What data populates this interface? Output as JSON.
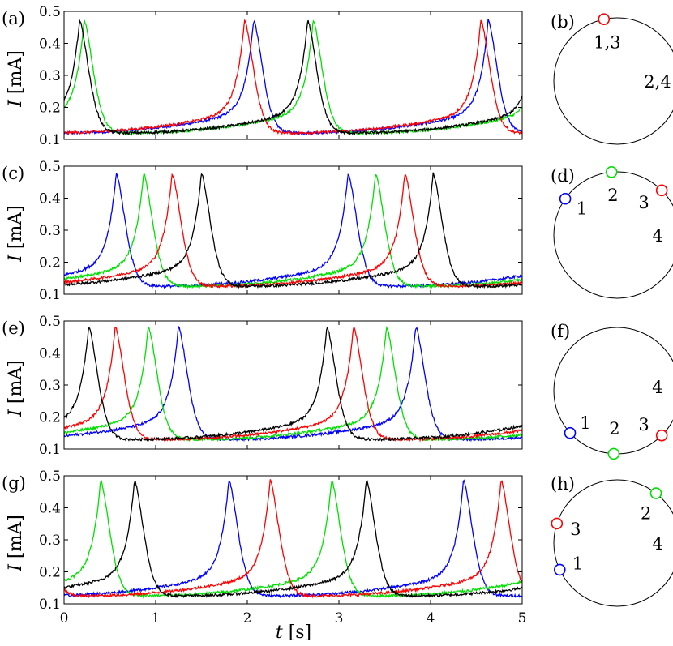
{
  "colors": {
    "1": "#0000ff",
    "2": "#00e000",
    "3": "#ff0000",
    "4": "#000000"
  },
  "xlabel_sym": "t",
  "xlabel_unit": "[s]",
  "ylabel_sym": "I",
  "ylabel_unit": "[mA]",
  "x_ticks": [
    "0",
    "1",
    "2",
    "3",
    "4",
    "5"
  ],
  "y_ticks": [
    "0.1",
    "0.2",
    "0.3",
    "0.4",
    "0.5"
  ],
  "panels": [
    {
      "label": "(a)",
      "circle_label": "(b)",
      "nodes": [
        {
          "id": "3",
          "angle": 102,
          "text": "1,3"
        },
        {
          "id": "4",
          "angle": 0,
          "text": "2,4"
        }
      ]
    },
    {
      "label": "(c)",
      "circle_label": "(d)",
      "nodes": [
        {
          "id": "1",
          "angle": 145,
          "text": "1"
        },
        {
          "id": "2",
          "angle": 95,
          "text": "2"
        },
        {
          "id": "3",
          "angle": 45,
          "text": "3"
        },
        {
          "id": "4",
          "angle": 0,
          "text": "4"
        }
      ]
    },
    {
      "label": "(e)",
      "circle_label": "(f)",
      "nodes": [
        {
          "id": "4",
          "angle": 5,
          "text": "4"
        },
        {
          "id": "3",
          "angle": -45,
          "text": "3"
        },
        {
          "id": "2",
          "angle": -93,
          "text": "2"
        },
        {
          "id": "1",
          "angle": -138,
          "text": "1"
        }
      ]
    },
    {
      "label": "(g)",
      "circle_label": "(h)",
      "nodes": [
        {
          "id": "2",
          "angle": 52,
          "text": "2"
        },
        {
          "id": "4",
          "angle": 0,
          "text": "4"
        },
        {
          "id": "3",
          "angle": 162,
          "text": "3"
        },
        {
          "id": "1",
          "angle": 205,
          "text": "1"
        }
      ]
    }
  ],
  "chart_data": [
    {
      "type": "line",
      "panel": "(a)",
      "xlim": [
        0,
        5
      ],
      "ylim": [
        0.1,
        0.5
      ],
      "baseline": 0.12,
      "peak": 0.47,
      "series": [
        {
          "name": "1",
          "color": "#0000ff",
          "peaks": [
            2.07,
            4.63
          ]
        },
        {
          "name": "2",
          "color": "#00e000",
          "peaks": [
            0.22,
            2.72
          ]
        },
        {
          "name": "3",
          "color": "#ff0000",
          "peaks": [
            1.97,
            4.55
          ]
        },
        {
          "name": "4",
          "color": "#000000",
          "peaks": [
            0.17,
            2.66
          ]
        }
      ]
    },
    {
      "type": "line",
      "panel": "(c)",
      "xlim": [
        0,
        5
      ],
      "ylim": [
        0.1,
        0.5
      ],
      "baseline": 0.125,
      "peak": 0.475,
      "series": [
        {
          "name": "1",
          "color": "#0000ff",
          "peaks": [
            0.57,
            3.1
          ]
        },
        {
          "name": "2",
          "color": "#00e000",
          "peaks": [
            0.87,
            3.4
          ]
        },
        {
          "name": "3",
          "color": "#ff0000",
          "peaks": [
            1.18,
            3.72
          ]
        },
        {
          "name": "4",
          "color": "#000000",
          "peaks": [
            1.5,
            4.03
          ]
        }
      ]
    },
    {
      "type": "line",
      "panel": "(e)",
      "xlim": [
        0,
        5
      ],
      "ylim": [
        0.1,
        0.5
      ],
      "baseline": 0.13,
      "peak": 0.48,
      "series": [
        {
          "name": "1",
          "color": "#0000ff",
          "peaks": [
            1.25,
            3.84
          ]
        },
        {
          "name": "2",
          "color": "#00e000",
          "peaks": [
            0.92,
            3.52
          ]
        },
        {
          "name": "3",
          "color": "#ff0000",
          "peaks": [
            0.56,
            3.16
          ]
        },
        {
          "name": "4",
          "color": "#000000",
          "peaks": [
            0.27,
            2.87
          ]
        }
      ]
    },
    {
      "type": "line",
      "panel": "(g)",
      "xlim": [
        0,
        5
      ],
      "ylim": [
        0.1,
        0.5
      ],
      "baseline": 0.125,
      "peak": 0.485,
      "series": [
        {
          "name": "1",
          "color": "#0000ff",
          "peaks": [
            1.8,
            4.36
          ]
        },
        {
          "name": "2",
          "color": "#00e000",
          "peaks": [
            0.4,
            2.92
          ]
        },
        {
          "name": "3",
          "color": "#ff0000",
          "peaks": [
            2.25,
            4.77
          ]
        },
        {
          "name": "4",
          "color": "#000000",
          "peaks": [
            0.77,
            3.3
          ]
        }
      ]
    }
  ]
}
